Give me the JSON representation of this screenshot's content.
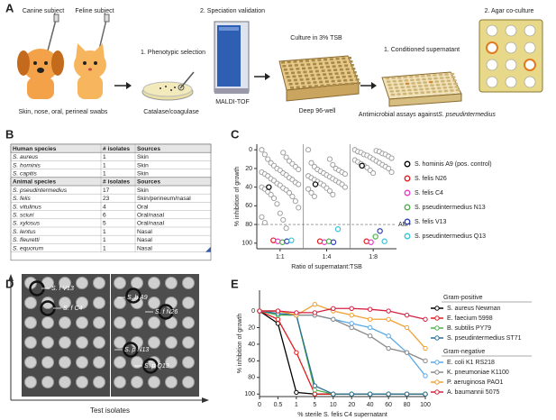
{
  "panels": {
    "a": "A",
    "b": "B",
    "c": "C",
    "d": "D",
    "e": "E"
  },
  "workflow": {
    "canine_subject": "Canine subject",
    "feline_subject": "Feline subject",
    "swabs": "Skin, nose, oral, perineal swabs",
    "step1_title": "1. Phenotypic selection",
    "step1_caption": "Catalase/coagulase",
    "step2_title": "2. Speciation validation",
    "step2_caption": "MALDI-TOF",
    "culture_title": "Culture in 3% TSB",
    "culture_caption": "Deep 96-well",
    "assay1_title": "1. Conditioned supernatant",
    "assay1_caption": "Antimicrobial assays against",
    "assay1_target": "S. pseudintermedius",
    "assay2_title": "2. Agar co-culture"
  },
  "table": {
    "sections": [
      {
        "header": [
          "Human species",
          "# isolates",
          "Sources"
        ],
        "rows": [
          [
            "S. aureus",
            "1",
            "Skin"
          ],
          [
            "S. hominis",
            "1",
            "Skin"
          ],
          [
            "S. capitis",
            "1",
            "Skin"
          ]
        ]
      },
      {
        "header": [
          "Animal species",
          "# isolates",
          "Sources"
        ],
        "rows": [
          [
            "S. pseudintermedius",
            "17",
            "Skin"
          ],
          [
            "S. felis",
            "23",
            "Skin/perineum/nasal"
          ],
          [
            "S. vitulinus",
            "4",
            "Oral"
          ],
          [
            "S. sciuri",
            "6",
            "Oral/nasal"
          ],
          [
            "S. xylosus",
            "5",
            "Oral/nasal"
          ],
          [
            "S. lentus",
            "1",
            "Nasal"
          ],
          [
            "S. fleuretti",
            "1",
            "Nasal"
          ],
          [
            "S. equorum",
            "1",
            "Nasal"
          ]
        ]
      }
    ]
  },
  "plate_image": {
    "labels": [
      "S. f V13",
      "S. f C4",
      "S. h A9",
      "S. f N26",
      "S. p N13",
      "S. p Q13"
    ],
    "axis_label": "Test isolates"
  },
  "chart_data": [
    {
      "type": "strip",
      "categories": [
        "1:1",
        "1:4",
        "1:8"
      ],
      "ylim": [
        -6,
        106
      ],
      "y_inverted": true,
      "yticks": [
        0,
        20,
        40,
        60,
        80,
        100
      ],
      "ylabel": "% inhibition of growth",
      "xlabel": "Ratio of supernatant:TSB",
      "reference_line": {
        "value": 80,
        "label": "AM+"
      },
      "series": [
        {
          "color": "#999999",
          "values": [
            [
              0,
              3,
              5,
              8,
              10,
              12,
              14,
              15,
              17,
              18,
              20,
              21,
              22,
              24,
              25,
              26,
              27,
              28,
              30,
              31,
              32,
              33,
              35,
              36,
              37,
              38,
              40,
              41,
              42,
              43,
              45,
              46,
              48,
              50,
              52,
              55,
              58,
              62,
              68,
              72,
              75,
              78,
              84
            ],
            [
              0,
              10,
              14,
              16,
              18,
              20,
              21,
              22,
              23,
              24,
              25,
              26,
              27,
              28,
              29,
              30,
              31,
              32,
              33,
              34,
              35,
              36,
              37,
              38,
              40,
              41,
              42,
              44,
              46,
              48,
              50
            ],
            [
              0,
              1,
              2,
              2,
              3,
              4,
              5,
              5,
              6,
              7,
              8,
              9,
              10,
              11,
              12,
              13,
              14,
              15,
              16,
              17,
              18,
              19,
              20,
              22,
              24,
              25
            ]
          ]
        },
        {
          "name": "S. hominis A9 (pos. control)",
          "color": "#000000",
          "values": [
            40,
            37,
            17
          ]
        },
        {
          "name": "S. felis N26",
          "color": "#e41a1c",
          "values": [
            97,
            98,
            98
          ]
        },
        {
          "name": "S. felis C4",
          "color": "#e639c8",
          "values": [
            98,
            99,
            99
          ]
        },
        {
          "name": "S. pseudintermedius N13",
          "color": "#4daf4a",
          "values": [
            99,
            98,
            93
          ]
        },
        {
          "name": "S. felis V13",
          "color": "#2b3fb8",
          "values": [
            98,
            99,
            87
          ]
        },
        {
          "name": "S. pseudintermedius Q13",
          "color": "#33c4d6",
          "values": [
            97,
            85,
            98
          ]
        }
      ]
    },
    {
      "type": "line",
      "categories": [
        "0",
        "0.5",
        "1",
        "5",
        "10",
        "20",
        "40",
        "60",
        "80",
        "100"
      ],
      "ylim": [
        -25,
        103
      ],
      "y_inverted": true,
      "yticks": [
        0,
        20,
        40,
        60,
        80,
        100
      ],
      "ylabel": "% inhibition of growth",
      "xlabel": "% sterile S. felis C4 supernatant",
      "groups": [
        {
          "title": "Gram-positive",
          "series": [
            {
              "name": "S. aureus Newman",
              "color": "#000000",
              "values": [
                0,
                15,
                98,
                100,
                100,
                100,
                100,
                100,
                100,
                100
              ]
            },
            {
              "name": "E. faecium 5998",
              "color": "#e41a1c",
              "values": [
                0,
                10,
                50,
                100,
                100,
                100,
                100,
                100,
                100,
                100
              ]
            },
            {
              "name": "B. subtilis PY79",
              "color": "#4daf4a",
              "values": [
                0,
                5,
                5,
                95,
                100,
                100,
                100,
                100,
                100,
                100
              ]
            },
            {
              "name": "S. pseudintermedius ST71",
              "color": "#2a6f97",
              "values": [
                0,
                3,
                5,
                90,
                100,
                100,
                100,
                100,
                100,
                100
              ]
            }
          ]
        },
        {
          "title": "Gram-negative",
          "series": [
            {
              "name": "E. coli K1 RS218",
              "color": "#5aa9e6",
              "values": [
                0,
                0,
                5,
                5,
                10,
                15,
                20,
                30,
                50,
                78
              ]
            },
            {
              "name": "K. pneumoniae K1100",
              "color": "#888888",
              "values": [
                0,
                0,
                5,
                5,
                10,
                20,
                30,
                45,
                50,
                60
              ]
            },
            {
              "name": "P. aeruginosa PAO1",
              "color": "#f0a030",
              "values": [
                0,
                0,
                5,
                -8,
                0,
                5,
                10,
                10,
                20,
                45
              ]
            },
            {
              "name": "A. baumannii 5075",
              "color": "#d62040",
              "values": [
                0,
                0,
                2,
                2,
                -3,
                -3,
                -2,
                0,
                5,
                10
              ]
            }
          ]
        }
      ]
    }
  ]
}
